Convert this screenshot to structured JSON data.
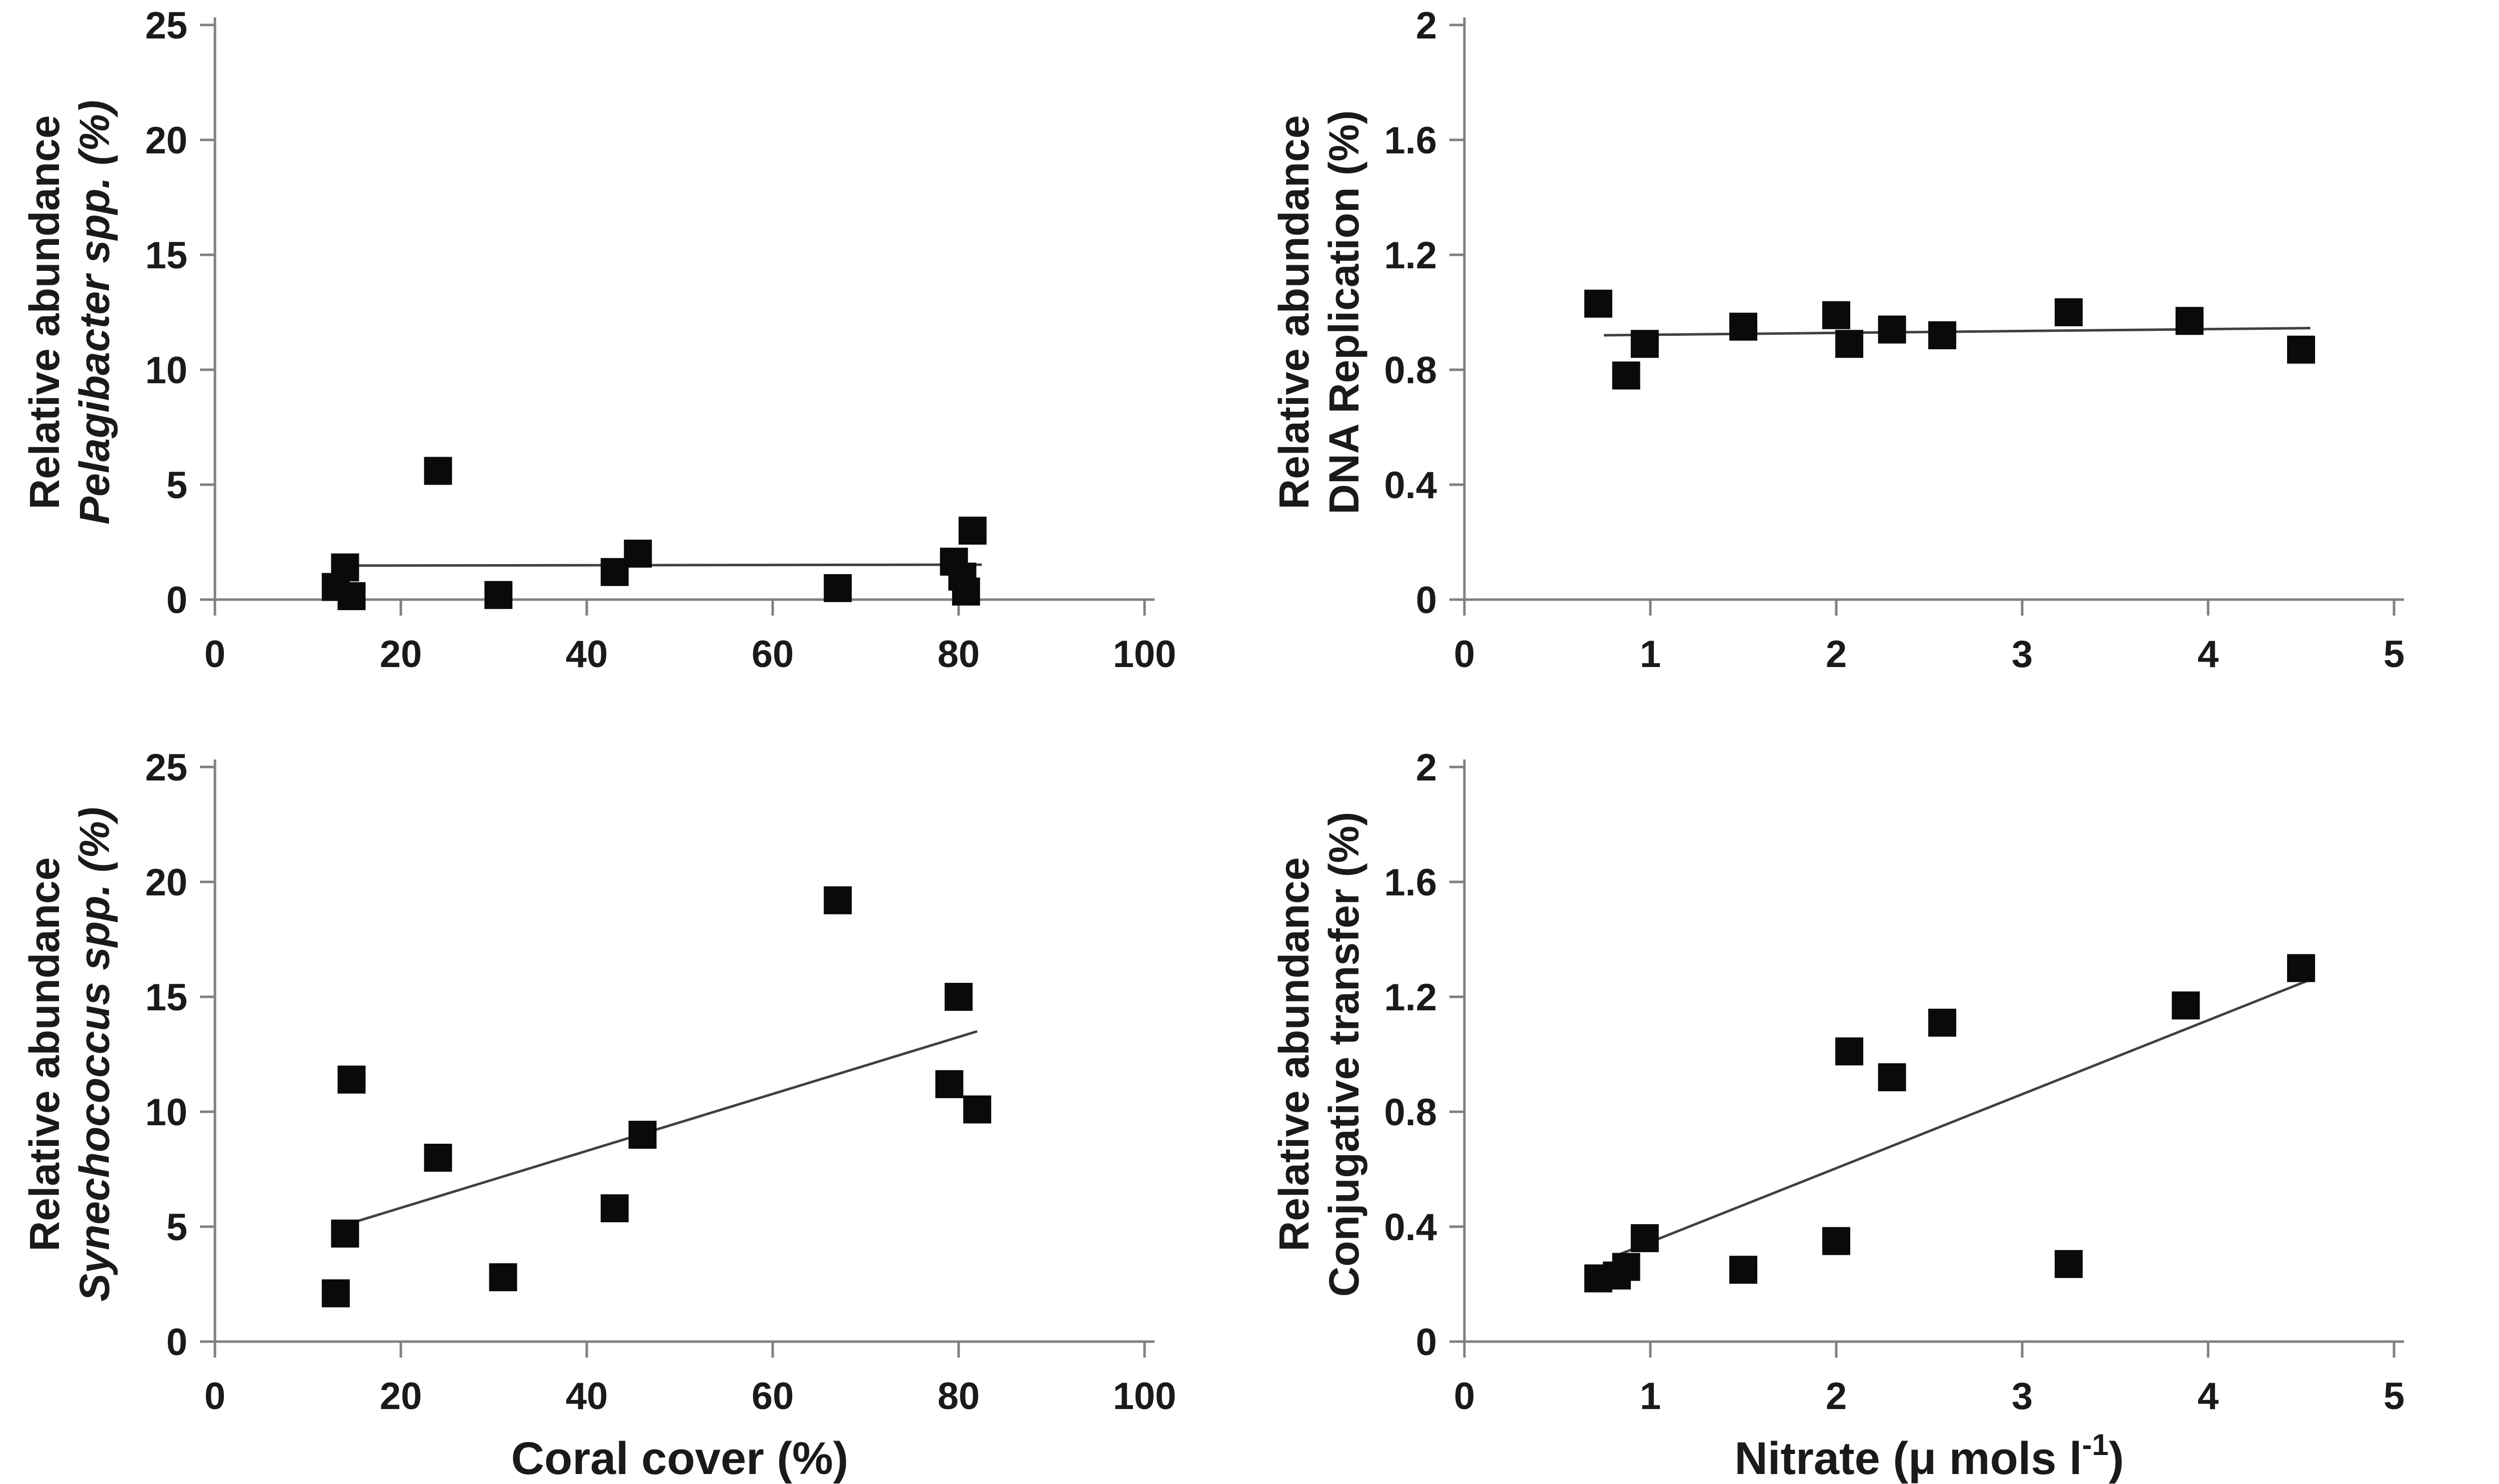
{
  "figure": {
    "name": "four-panel-scatter-figure",
    "background": "#ffffff",
    "text_color": "#1a1a1a",
    "marker_color": "#0a0a0a",
    "marker_shape": "filled-square",
    "trend_color": "#404040",
    "axis_color": "#808080"
  },
  "chart_data": [
    {
      "type": "scatter",
      "name": "pelagibacter-vs-coral-cover",
      "ylabel_line1": "Relative abundance",
      "ylabel_line2": "Pelagibacter spp. (%)",
      "ylabel_line2_style": "italic",
      "xlabel": "",
      "xlabel_sup": "",
      "xlabel_close": "",
      "xlim": [
        0,
        100
      ],
      "ylim": [
        0,
        25
      ],
      "xticks": [
        "0",
        "20",
        "40",
        "60",
        "80",
        "100"
      ],
      "yticks": [
        "0",
        "5",
        "10",
        "15",
        "20",
        "25"
      ],
      "grid": "off",
      "legend": "none",
      "points": [
        [
          13,
          0.55
        ],
        [
          14,
          1.4
        ],
        [
          14.7,
          0.15
        ],
        [
          24,
          5.6
        ],
        [
          30.5,
          0.2
        ],
        [
          43,
          1.2
        ],
        [
          45.5,
          2.0
        ],
        [
          67,
          0.5
        ],
        [
          79.5,
          1.65
        ],
        [
          80.4,
          1.0
        ],
        [
          80.8,
          0.35
        ],
        [
          81.5,
          3.0
        ]
      ],
      "trend": [
        14,
        1.48,
        82.5,
        1.52
      ]
    },
    {
      "type": "scatter",
      "name": "dna-replication-vs-nitrate",
      "ylabel_line1": "Relative abundance",
      "ylabel_line2": "DNA Replication (%)",
      "ylabel_line2_style": "normal",
      "xlabel": "",
      "xlabel_sup": "",
      "xlabel_close": "",
      "xlim": [
        0,
        5
      ],
      "ylim": [
        0,
        2
      ],
      "xticks": [
        "0",
        "1",
        "2",
        "3",
        "4",
        "5"
      ],
      "yticks": [
        "0",
        "0.4",
        "0.8",
        "1.2",
        "1.6",
        "2"
      ],
      "grid": "off",
      "legend": "none",
      "points": [
        [
          0.72,
          1.03
        ],
        [
          0.87,
          0.78
        ],
        [
          0.97,
          0.89
        ],
        [
          1.5,
          0.95
        ],
        [
          2.0,
          0.99
        ],
        [
          2.07,
          0.89
        ],
        [
          2.3,
          0.94
        ],
        [
          2.57,
          0.92
        ],
        [
          3.25,
          1.0
        ],
        [
          3.9,
          0.97
        ],
        [
          4.5,
          0.87
        ]
      ],
      "trend": [
        0.75,
        0.92,
        4.55,
        0.945
      ]
    },
    {
      "type": "scatter",
      "name": "synechococcus-vs-coral-cover",
      "ylabel_line1": "Relative abundance",
      "ylabel_line2": "Synechococcus spp. (%)",
      "ylabel_line2_style": "italic",
      "xlabel": "Coral cover (%)",
      "xlabel_sup": "",
      "xlabel_close": "",
      "xlim": [
        0,
        100
      ],
      "ylim": [
        0,
        25
      ],
      "xticks": [
        "0",
        "20",
        "40",
        "60",
        "80",
        "100"
      ],
      "yticks": [
        "0",
        "5",
        "10",
        "15",
        "20",
        "25"
      ],
      "grid": "off",
      "legend": "none",
      "points": [
        [
          13,
          2.1
        ],
        [
          14,
          4.7
        ],
        [
          14.7,
          11.4
        ],
        [
          24,
          8.0
        ],
        [
          31,
          2.8
        ],
        [
          43,
          5.8
        ],
        [
          46,
          9.0
        ],
        [
          67,
          19.2
        ],
        [
          79,
          11.2
        ],
        [
          80,
          15.0
        ],
        [
          82,
          10.1
        ]
      ],
      "trend": [
        15,
        5.2,
        82,
        13.5
      ]
    },
    {
      "type": "scatter",
      "name": "conjugative-transfer-vs-nitrate",
      "ylabel_line1": "Relative abundance",
      "ylabel_line2": "Conjugative transfer (%)",
      "ylabel_line2_style": "normal",
      "xlabel": "Nitrate (μ mols l",
      "xlabel_sup": "-1",
      "xlabel_close": ")",
      "xlim": [
        0,
        5
      ],
      "ylim": [
        0,
        2
      ],
      "xticks": [
        "0",
        "1",
        "2",
        "3",
        "4",
        "5"
      ],
      "yticks": [
        "0",
        "0.4",
        "0.8",
        "1.2",
        "1.6",
        "2"
      ],
      "grid": "off",
      "legend": "none",
      "points": [
        [
          0.72,
          0.22
        ],
        [
          0.82,
          0.23
        ],
        [
          0.87,
          0.26
        ],
        [
          0.97,
          0.36
        ],
        [
          1.5,
          0.25
        ],
        [
          2.0,
          0.35
        ],
        [
          2.07,
          1.01
        ],
        [
          2.3,
          0.92
        ],
        [
          2.57,
          1.11
        ],
        [
          3.25,
          0.27
        ],
        [
          3.88,
          1.17
        ],
        [
          4.5,
          1.3
        ]
      ],
      "trend": [
        0.82,
        0.3,
        4.55,
        1.26
      ]
    }
  ]
}
